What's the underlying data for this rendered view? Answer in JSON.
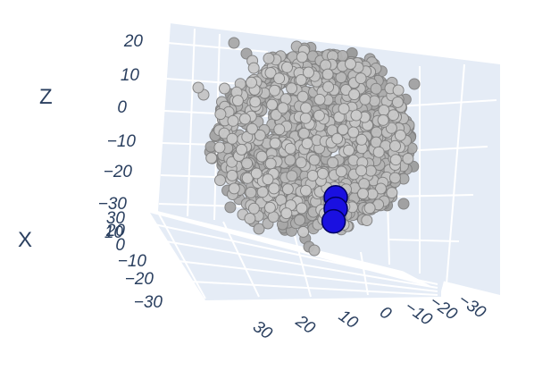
{
  "chart_data": {
    "type": "scatter3d",
    "axes": {
      "z": {
        "title": "Z",
        "ticks": [
          "20",
          "10",
          "0",
          "−10",
          "−20",
          "−30"
        ]
      },
      "x": {
        "title": "X",
        "ticks": [
          "30",
          "20",
          "10",
          "0",
          "−10",
          "−20",
          "−30"
        ]
      },
      "y": {
        "title": "",
        "ticks": [
          "30",
          "20",
          "10",
          "0",
          "−10",
          "−20",
          "−30"
        ]
      }
    },
    "background_series": {
      "name": "",
      "color": "#b0b0b0",
      "edge_color": "#808080",
      "count": 1500
    },
    "highlight_series": {
      "name": "",
      "color": "#1a10e0",
      "edge_color": "#000060",
      "points": [
        {
          "x": -18,
          "y": 26,
          "z": -20
        },
        {
          "x": -22,
          "y": 24,
          "z": -24
        },
        {
          "x": -28,
          "y": 20,
          "z": -28
        }
      ]
    },
    "grid": true,
    "background_color": "#e5ecf6"
  }
}
